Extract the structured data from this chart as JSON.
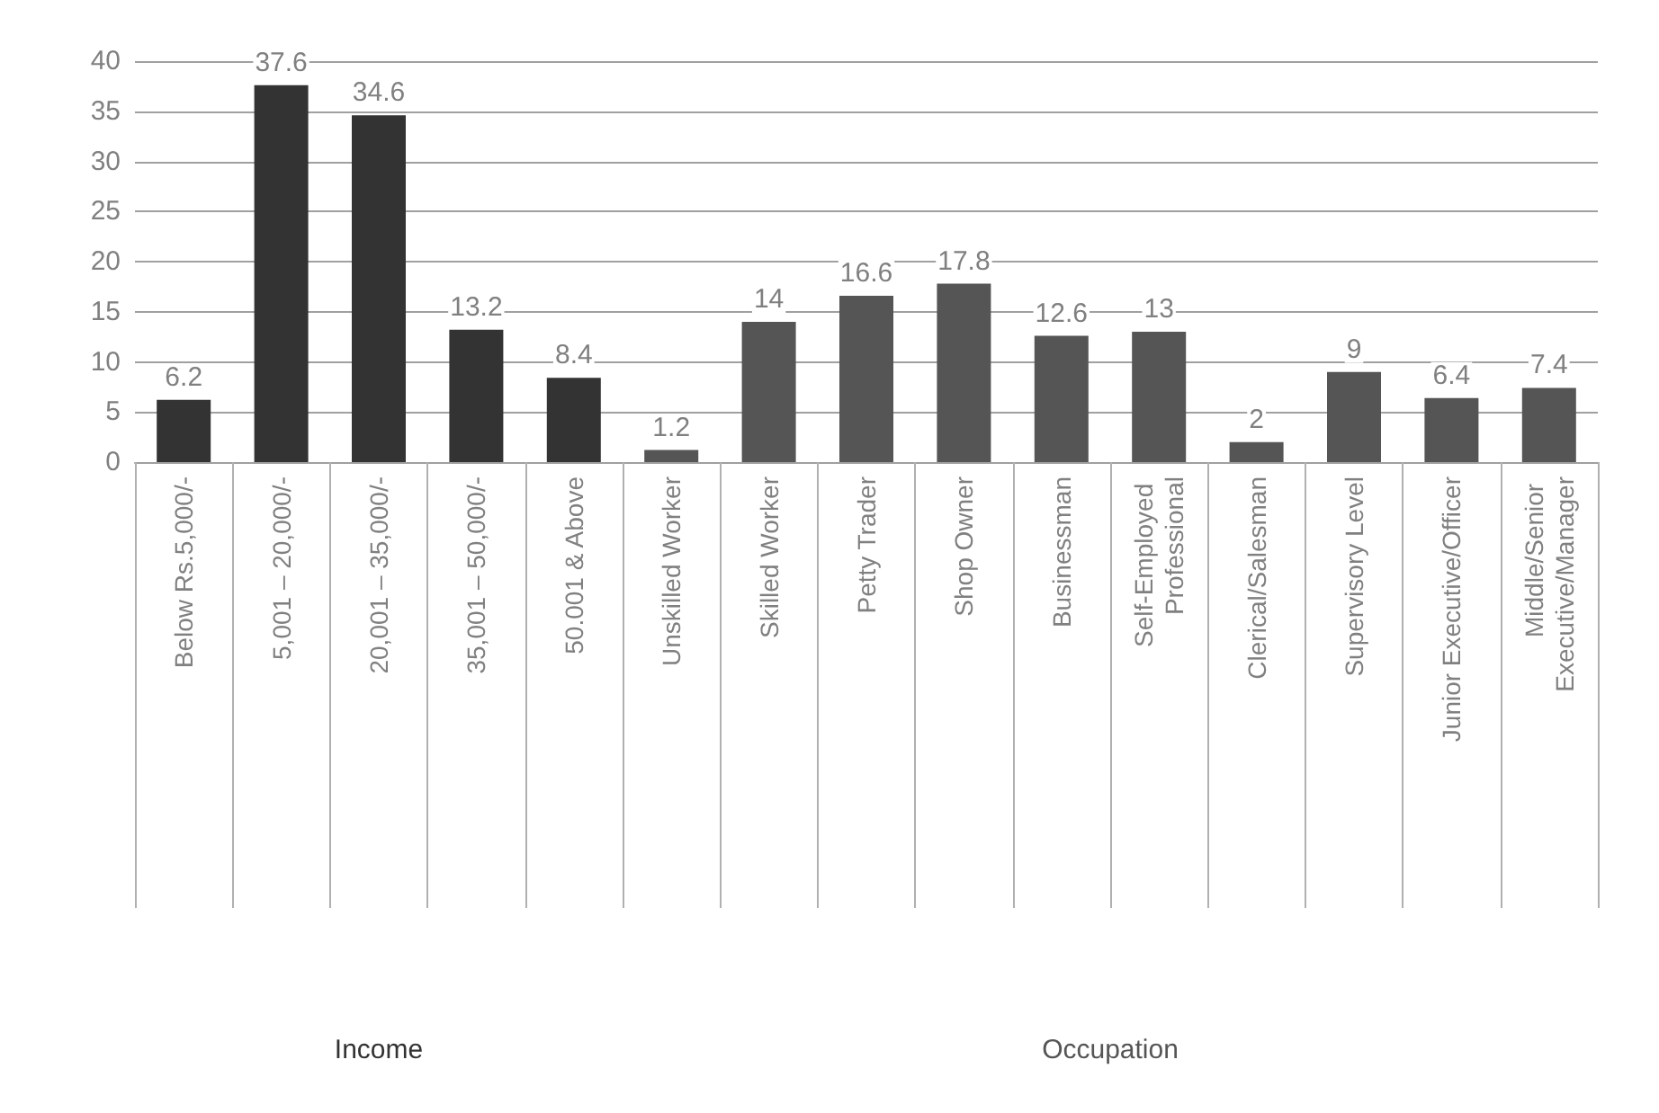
{
  "chart_data": {
    "type": "bar",
    "categories": [
      "Below Rs.5,000/-",
      "5,001 – 20,000/-",
      "20,001 – 35,000/-",
      "35,001 – 50,000/-",
      "50.001 & Above",
      "Unskilled Worker",
      "Skilled Worker",
      "Petty Trader",
      "Shop Owner",
      "Businessman",
      "Self-Employed Professional",
      "Clerical/Salesman",
      "Supervisory Level",
      "Junior Executive/Officer",
      "Middle/Senior Executive/Manager"
    ],
    "series": [
      {
        "name": "Income",
        "color": "#333333",
        "values": [
          6.2,
          37.6,
          34.6,
          13.2,
          8.4,
          null,
          null,
          null,
          null,
          null,
          null,
          null,
          null,
          null,
          null
        ]
      },
      {
        "name": "Occupation",
        "color": "#555555",
        "values": [
          null,
          null,
          null,
          null,
          null,
          1.2,
          14,
          16.6,
          17.8,
          12.6,
          13,
          2,
          9,
          6.4,
          7.4
        ]
      }
    ],
    "ylim": [
      0,
      40
    ],
    "yticks": [
      0,
      5,
      10,
      15,
      20,
      25,
      30,
      35,
      40
    ],
    "grid": "y",
    "legend": false,
    "data_labels": true
  }
}
